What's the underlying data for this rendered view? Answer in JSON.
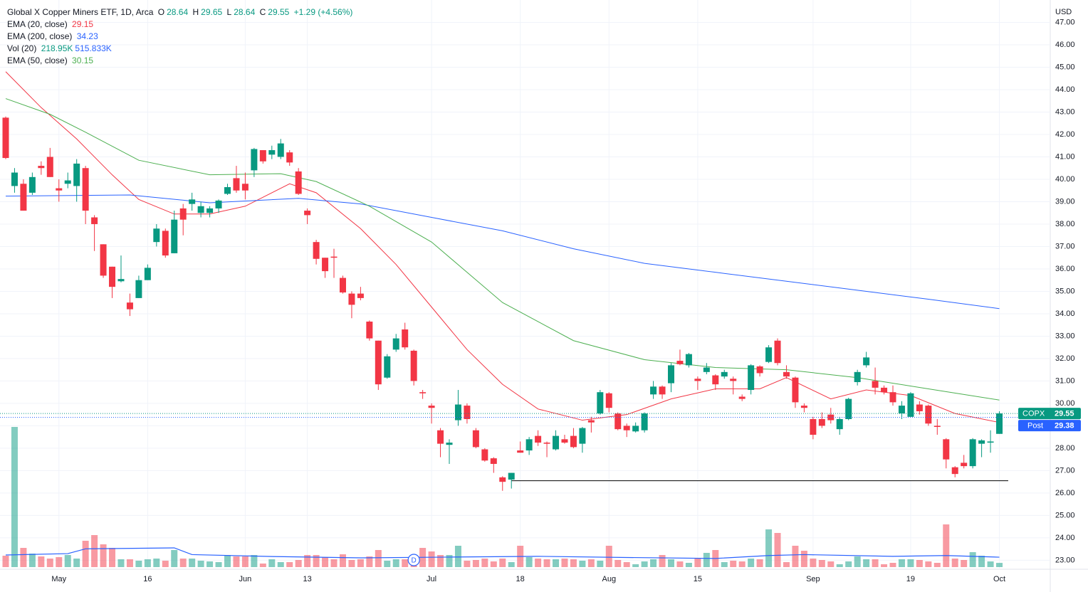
{
  "chart_data": {
    "type": "candlestick",
    "title": "Global X Copper Miners ETF, 1D, Arca",
    "ohlc_labels": [
      "O",
      "H",
      "L",
      "C"
    ],
    "change": "+1.29 (+4.56%)",
    "symbol": "COPX",
    "y_axis_label": "USD",
    "up_color": "#089981",
    "down_color": "#f23645",
    "grid": true,
    "categories": [
      null,
      null,
      null,
      null,
      null,
      null,
      "May",
      null,
      null,
      null,
      null,
      null,
      null,
      null,
      null,
      null,
      "16",
      null,
      null,
      null,
      null,
      null,
      null,
      null,
      null,
      null,
      null,
      "Jun",
      null,
      null,
      null,
      null,
      null,
      null,
      "13",
      null,
      null,
      null,
      null,
      null,
      null,
      null,
      null,
      null,
      null,
      null,
      null,
      null,
      "Jul",
      null,
      null,
      null,
      null,
      null,
      null,
      null,
      null,
      null,
      "18",
      null,
      null,
      null,
      null,
      null,
      null,
      null,
      null,
      null,
      "Aug",
      null,
      null,
      null,
      null,
      null,
      null,
      null,
      null,
      null,
      "15",
      null,
      null,
      null,
      null,
      null,
      null,
      null,
      null,
      null,
      null,
      null,
      null,
      "Sep",
      null,
      null,
      null,
      null,
      null,
      null,
      null,
      null,
      null,
      null,
      "19",
      null,
      null,
      null,
      null,
      null,
      null,
      null,
      null,
      null,
      "Oct"
    ],
    "open": [
      42.75,
      39.7,
      39.8,
      39.4,
      40.6,
      41,
      39.6,
      39.8,
      39.7,
      40.5,
      38.3,
      37.1,
      36.1,
      35.45,
      34.5,
      34.7,
      35.5,
      37.2,
      37.7,
      36.7,
      38.7,
      38.9,
      38.5,
      38.5,
      38.7,
      39.35,
      40.05,
      39.8,
      40.4,
      41.3,
      41.1,
      41,
      41.2,
      40.35,
      38.6,
      37.2,
      36.5,
      36.55,
      35.6,
      34.9,
      34.9,
      33.65,
      32.8,
      31.15,
      32.4,
      33.3,
      32.35,
      30.5,
      29.9,
      28.8,
      28.15,
      29.25,
      29.9,
      28.8,
      27.95,
      27.55,
      26.7,
      26.6,
      27.9,
      27.9,
      28.55,
      28.25,
      27.95,
      28.4,
      28.55,
      28.2,
      29.25,
      29.55,
      30.45,
      29.55,
      29,
      28.75,
      28.8,
      30.4,
      30.75,
      30.9,
      31.9,
      31.7,
      31.1,
      31.4,
      31.25,
      31.2,
      31.1,
      30.3,
      30.6,
      31.65,
      31.85,
      32.8,
      31.4,
      31.15,
      29.9,
      29.3,
      29.3,
      29.5,
      28.85,
      29.3,
      30.95,
      31.7,
      31,
      30.7,
      30.5,
      29.55,
      29.4,
      29.95,
      29.9,
      29,
      28.4,
      27.15,
      27.35,
      27.2,
      28.2,
      28.25,
      28.64
    ],
    "high": [
      42.8,
      40.5,
      40,
      40.3,
      40.8,
      41.4,
      40,
      40.3,
      40.9,
      40.6,
      38.4,
      37.1,
      36.1,
      36.6,
      34.9,
      35.7,
      36.2,
      38,
      37.8,
      38.6,
      38.9,
      39.4,
      39,
      38.8,
      39.1,
      39.8,
      40.6,
      40.3,
      41.4,
      41.3,
      41.5,
      41.8,
      41.3,
      40.5,
      38.7,
      37.3,
      36.5,
      36.9,
      35.7,
      35,
      35.2,
      33.7,
      32.8,
      32.2,
      33.1,
      33.6,
      32.4,
      30.6,
      30,
      28.9,
      28.4,
      30.6,
      30,
      28.9,
      28,
      27.6,
      26.75,
      26.9,
      28.3,
      28.5,
      28.8,
      28.3,
      28.8,
      28.6,
      28.9,
      28.95,
      29.4,
      30.6,
      30.5,
      29.6,
      29.1,
      29.15,
      29.6,
      31,
      30.8,
      31.8,
      32.4,
      32.25,
      31.2,
      31.8,
      31.3,
      31.5,
      31.2,
      30.4,
      31.75,
      31.7,
      32.6,
      32.9,
      31.7,
      31.2,
      30,
      29.4,
      29.6,
      29.8,
      29.4,
      30.25,
      31.5,
      32.3,
      31.6,
      30.8,
      30.8,
      30.1,
      30.5,
      30.1,
      29.95,
      29.3,
      28.45,
      27.2,
      27.7,
      28.45,
      28.4,
      28.8,
      29.65
    ],
    "low": [
      40.9,
      39.4,
      38.6,
      39.3,
      40.2,
      40.1,
      39,
      39.6,
      39,
      38,
      36.8,
      35.6,
      34.7,
      35.4,
      33.9,
      34.7,
      35.5,
      37,
      36.5,
      36.7,
      37.5,
      38.6,
      38.3,
      38.3,
      38.5,
      39.3,
      39.4,
      39.1,
      40.1,
      40.7,
      40.9,
      40.9,
      40.6,
      39.3,
      38,
      36.2,
      35.6,
      35.6,
      34.9,
      33.8,
      34.6,
      32.8,
      30.6,
      31.1,
      32.3,
      32.4,
      30.8,
      30.2,
      29.1,
      27.6,
      27.3,
      29,
      29.1,
      28,
      27.4,
      26.9,
      26.1,
      26.2,
      27.8,
      27.7,
      28.1,
      27.6,
      27.9,
      28.2,
      28,
      27.8,
      28.7,
      29.5,
      29.6,
      28.8,
      28.5,
      28.7,
      28.7,
      30.2,
      30.2,
      30.5,
      31.7,
      31.6,
      30.6,
      31.3,
      30.6,
      31.1,
      30.4,
      30.1,
      30.4,
      31.2,
      31.8,
      31.7,
      31.1,
      29.8,
      29.6,
      28.4,
      28.9,
      29.1,
      28.6,
      29.25,
      30.8,
      31.6,
      30.4,
      30.4,
      29.9,
      29.3,
      29.4,
      29.5,
      29,
      28.6,
      27.1,
      26.7,
      27.1,
      27.1,
      27.6,
      27.8,
      28.64
    ],
    "close": [
      40.95,
      40.3,
      38.6,
      40.1,
      40.5,
      40.1,
      39.5,
      39.95,
      40.7,
      38.6,
      38,
      35.7,
      35.2,
      35.55,
      34.2,
      35.5,
      36.05,
      37.8,
      36.6,
      38.2,
      38.2,
      39.1,
      38.8,
      38.7,
      39.05,
      39.65,
      39.5,
      39.5,
      41.35,
      40.8,
      41.3,
      41.6,
      40.75,
      39.35,
      38.4,
      36.45,
      35.9,
      36.5,
      34.95,
      34.4,
      34.7,
      32.9,
      30.85,
      32.1,
      32.9,
      32.5,
      31,
      30.45,
      29.8,
      28.2,
      28.25,
      29.95,
      29.3,
      28.05,
      27.45,
      27.3,
      26.5,
      26.9,
      27.8,
      28.4,
      28.25,
      28.2,
      28.55,
      28.25,
      28.05,
      28.9,
      29.15,
      30.5,
      29.8,
      28.85,
      28.8,
      29,
      29.55,
      30.75,
      30.4,
      31.7,
      31.75,
      32.2,
      31,
      31.6,
      30.85,
      31.4,
      31,
      30.2,
      31.7,
      31.35,
      32.5,
      31.8,
      31.2,
      30.05,
      29.8,
      28.6,
      29,
      29.25,
      29.3,
      30.2,
      31.4,
      32.05,
      30.7,
      30.5,
      30.05,
      29.9,
      30.45,
      29.65,
      29.1,
      28.95,
      27.5,
      26.85,
      27.2,
      28.4,
      28.35,
      28.3,
      29.55
    ],
    "ylim": [
      22.6,
      48
    ],
    "yticks": [
      {
        "value": 23,
        "label": "23.00"
      },
      {
        "value": 24,
        "label": "24.00"
      },
      {
        "value": 25,
        "label": "25.00"
      },
      {
        "value": 26,
        "label": "26.00"
      },
      {
        "value": 27,
        "label": "27.00"
      },
      {
        "value": 28,
        "label": "28.00"
      },
      {
        "value": 29,
        "label": "29.00"
      },
      {
        "value": 30,
        "label": "30.00"
      },
      {
        "value": 31,
        "label": "31.00"
      },
      {
        "value": 32,
        "label": "32.00"
      },
      {
        "value": 33,
        "label": "33.00"
      },
      {
        "value": 34,
        "label": "34.00"
      },
      {
        "value": 35,
        "label": "35.00"
      },
      {
        "value": 36,
        "label": "36.00"
      },
      {
        "value": 37,
        "label": "37.00"
      },
      {
        "value": 38,
        "label": "38.00"
      },
      {
        "value": 39,
        "label": "39.00"
      },
      {
        "value": 40,
        "label": "40.00"
      },
      {
        "value": 41,
        "label": "41.00"
      },
      {
        "value": 42,
        "label": "42.00"
      },
      {
        "value": 43,
        "label": "43.00"
      },
      {
        "value": 44,
        "label": "44.00"
      },
      {
        "value": 45,
        "label": "45.00"
      },
      {
        "value": 46,
        "label": "46.00"
      },
      {
        "value": 47,
        "label": "47.00"
      }
    ],
    "series": [
      {
        "name": "EMA (20, close)",
        "color": "#f23645",
        "x": [
          0,
          4,
          8,
          12,
          15,
          19,
          23,
          27,
          32,
          35,
          40,
          44,
          48,
          52,
          56,
          60,
          65,
          70,
          75,
          80,
          85,
          88,
          93,
          97,
          102,
          107,
          112
        ],
        "values": [
          44.8,
          43.2,
          41.8,
          40.2,
          39.1,
          38.45,
          38.45,
          38.8,
          39.8,
          39.4,
          37.8,
          36.2,
          34.3,
          32.4,
          30.85,
          29.75,
          29.25,
          29.5,
          30.2,
          30.65,
          30.65,
          31.15,
          30.2,
          30.6,
          30.35,
          29.55,
          29.15
        ]
      },
      {
        "name": "EMA (200, close)",
        "color": "#2962ff",
        "x": [
          0,
          14,
          23,
          33,
          40,
          48,
          56,
          64,
          72,
          80,
          88,
          96,
          104,
          112
        ],
        "values": [
          39.25,
          39.3,
          38.95,
          39.15,
          38.9,
          38.3,
          37.7,
          36.9,
          36.25,
          35.85,
          35.45,
          35.05,
          34.65,
          34.23
        ]
      },
      {
        "name": "EMA (50, close)",
        "color": "#4caf50",
        "x": [
          0,
          5,
          9,
          15,
          23,
          31,
          35,
          41,
          48,
          56,
          64,
          72,
          80,
          88,
          96,
          104,
          112
        ],
        "values": [
          43.6,
          42.9,
          42.1,
          40.85,
          40.2,
          40.25,
          39.9,
          38.8,
          37.2,
          34.5,
          32.8,
          31.95,
          31.6,
          31.5,
          31.15,
          30.65,
          30.15
        ]
      }
    ],
    "volume": {
      "name": "Vol (20)",
      "legend_value_label": "218.95K",
      "values": [
        592000,
        7289000,
        999000,
        703000,
        555000,
        444000,
        518000,
        629000,
        444000,
        1369000,
        1665000,
        1184000,
        999000,
        407000,
        407000,
        333000,
        407000,
        444000,
        333000,
        888000,
        444000,
        444000,
        333000,
        296000,
        259000,
        629000,
        555000,
        555000,
        629000,
        185000,
        407000,
        259000,
        259000,
        370000,
        629000,
        629000,
        518000,
        407000,
        666000,
        370000,
        407000,
        555000,
        888000,
        333000,
        407000,
        407000,
        629000,
        999000,
        814000,
        629000,
        629000,
        1110000,
        333000,
        370000,
        444000,
        296000,
        444000,
        259000,
        1110000,
        518000,
        444000,
        407000,
        407000,
        444000,
        407000,
        333000,
        407000,
        333000,
        1110000,
        370000,
        259000,
        148000,
        296000,
        407000,
        629000,
        407000,
        296000,
        222000,
        481000,
        740000,
        888000,
        259000,
        333000,
        296000,
        444000,
        407000,
        1961000,
        1776000,
        259000,
        1110000,
        851000,
        444000,
        370000,
        296000,
        148000,
        296000,
        555000,
        407000,
        407000,
        148000,
        222000,
        407000,
        407000,
        370000,
        296000,
        222000,
        2220000,
        444000,
        370000,
        777000,
        592000,
        296000,
        218950
      ]
    },
    "volume_ma": {
      "color": "#2962ff",
      "legend_value_label": "515.833K",
      "x": [
        0,
        7,
        9,
        19,
        21,
        30,
        40,
        50,
        60,
        70,
        80,
        86,
        90,
        100,
        106,
        112
      ],
      "values": [
        630000,
        700000,
        950000,
        1000000,
        650000,
        550000,
        480000,
        520000,
        560000,
        500000,
        450000,
        600000,
        650000,
        560000,
        600000,
        515833
      ]
    },
    "post_market": {
      "label": "Post",
      "value": 29.38,
      "color": "#2962ff"
    },
    "horizontal_line": {
      "value": 26.55,
      "x": [
        57,
        113
      ]
    },
    "events": [
      {
        "label": "D",
        "x": 46
      }
    ]
  }
}
